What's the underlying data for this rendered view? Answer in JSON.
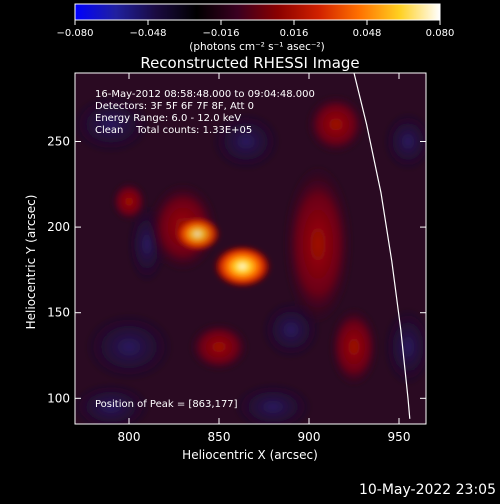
{
  "colorbar": {
    "ticks": [
      "−0.080",
      "−0.048",
      "−0.016",
      "0.016",
      "0.048",
      "0.080"
    ],
    "unit_label": "(photons cm⁻² s⁻¹ asec⁻²)",
    "stops": [
      "#0000ff",
      "#2020a0",
      "#1a0a40",
      "#000000",
      "#3a0020",
      "#8a0000",
      "#d02000",
      "#ff7000",
      "#ffd020",
      "#ffffff"
    ]
  },
  "chart_data": {
    "type": "heatmap",
    "title": "Reconstructed RHESSI Image",
    "xlabel": "Heliocentric X (arcsec)",
    "ylabel": "Heliocentric Y (arcsec)",
    "xlim": [
      770,
      965
    ],
    "ylim": [
      85,
      290
    ],
    "x_ticks": [
      800,
      850,
      900,
      950
    ],
    "y_ticks": [
      100,
      150,
      200,
      250
    ],
    "info_lines": [
      "16-May-2012 08:58:48.000 to 09:04:48.000",
      "Detectors: 3F 5F 6F 7F 8F, Att 0",
      "Energy Range: 6.0 - 12.0 keV",
      "Clean    Total counts: 1.33E+05"
    ],
    "peak_label": "Position of Peak = [863,177]",
    "peak": [
      863,
      177
    ],
    "limb_curve": [
      [
        925,
        290
      ],
      [
        932,
        260
      ],
      [
        940,
        220
      ],
      [
        946,
        180
      ],
      [
        951,
        140
      ],
      [
        955,
        100
      ],
      [
        956,
        88
      ]
    ]
  },
  "timestamp": "10-May-2022 23:05"
}
